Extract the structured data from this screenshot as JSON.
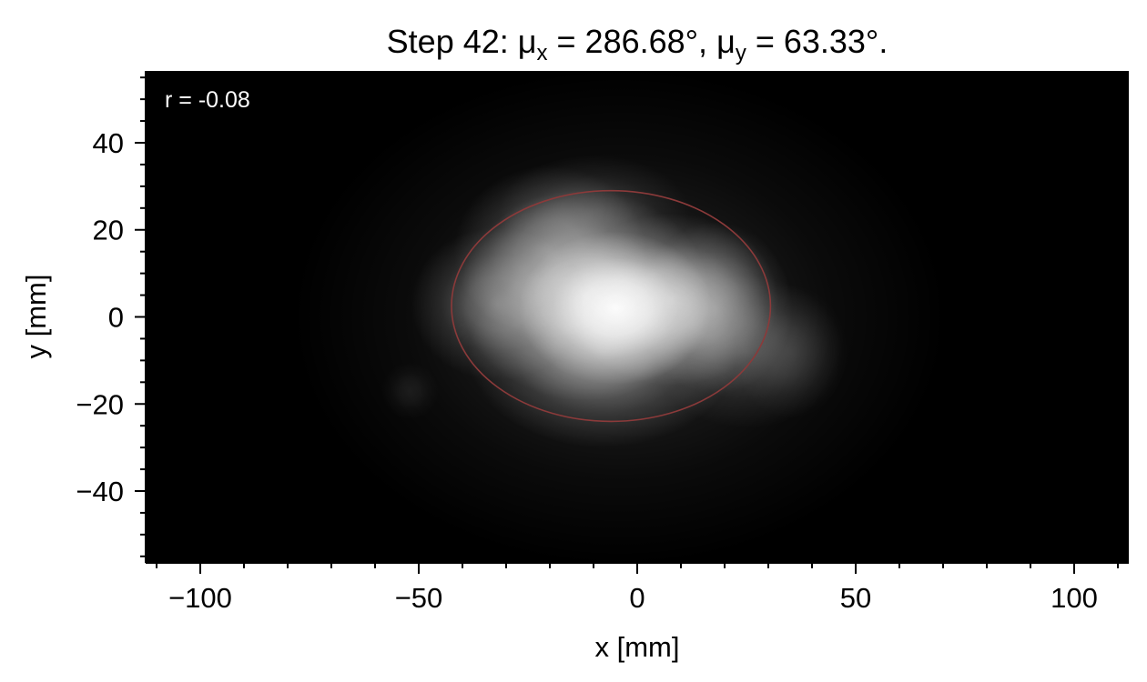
{
  "chart_data": {
    "type": "heatmap",
    "title": {
      "prefix": "Step 42: ",
      "mu_symbol": "μ",
      "x_sub": "x",
      "x_value": " = 286.68°, ",
      "y_sub": "y",
      "y_value": " = 63.33°."
    },
    "xlabel": "x [mm]",
    "ylabel": "y [mm]",
    "xlim": [
      -112.5,
      112.5
    ],
    "ylim": [
      -56.5,
      56.5
    ],
    "xticks": [
      -100,
      -50,
      0,
      50,
      100
    ],
    "yticks": [
      -40,
      -20,
      0,
      20,
      40
    ],
    "xtick_labels": [
      "−100",
      "−50",
      "0",
      "50",
      "100"
    ],
    "ytick_labels": [
      "−40",
      "−20",
      "0",
      "20",
      "40"
    ],
    "x_minor_step": 10,
    "y_minor_step": 5,
    "annotation": "r = -0.08",
    "colormap": "grayscale",
    "background_color": "#000000",
    "ellipse": {
      "center_x": -6,
      "center_y": 2.5,
      "semi_axis_x": 36.5,
      "semi_axis_y": 26.5,
      "color": "#8b3a3a"
    },
    "blobs": [
      {
        "x": -5,
        "y": 2,
        "sx": 10,
        "sy": 8,
        "intensity": 0.95
      },
      {
        "x": -12,
        "y": 5,
        "sx": 13,
        "sy": 11,
        "intensity": 0.6
      },
      {
        "x": 8,
        "y": 4,
        "sx": 11,
        "sy": 9,
        "intensity": 0.55
      },
      {
        "x": 18,
        "y": 2,
        "sx": 8,
        "sy": 9,
        "intensity": 0.35
      },
      {
        "x": -32,
        "y": 3,
        "sx": 9,
        "sy": 8,
        "intensity": 0.35
      },
      {
        "x": -20,
        "y": 15,
        "sx": 10,
        "sy": 9,
        "intensity": 0.35
      },
      {
        "x": -8,
        "y": -8,
        "sx": 14,
        "sy": 10,
        "intensity": 0.45
      },
      {
        "x": -10,
        "y": 24,
        "sx": 10,
        "sy": 6,
        "intensity": 0.18
      },
      {
        "x": 25,
        "y": -8,
        "sx": 10,
        "sy": 8,
        "intensity": 0.2
      },
      {
        "x": -4,
        "y": 0,
        "sx": 34,
        "sy": 26,
        "intensity": 0.14
      },
      {
        "x": -52,
        "y": -17,
        "sx": 3,
        "sy": 3,
        "intensity": 0.08
      },
      {
        "x": 35,
        "y": -8,
        "sx": 6,
        "sy": 7,
        "intensity": 0.12
      }
    ]
  }
}
